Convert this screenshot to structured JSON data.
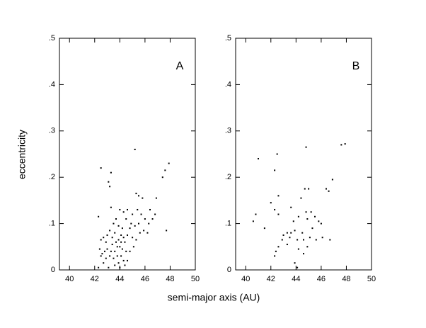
{
  "chart_data": [
    {
      "type": "scatter",
      "label": "A",
      "ylabel": "eccentricity",
      "xlabel": "semi-major axis (AU)",
      "xlim": [
        39.2,
        50
      ],
      "ylim": [
        0,
        0.5
      ],
      "xticks": [
        40,
        42,
        44,
        46,
        48,
        50
      ],
      "yticks": [
        0,
        {
          "value": 0.1,
          "label": ".1"
        },
        {
          "value": 0.2,
          "label": ".2"
        },
        {
          "value": 0.3,
          "label": ".3"
        },
        {
          "value": 0.4,
          "label": ".4"
        },
        {
          "value": 0.5,
          "label": ".5"
        }
      ],
      "color": "#000000",
      "x": [
        42.5,
        43.3,
        43.1,
        43.2,
        45.2,
        47.9,
        47.6,
        47.4,
        45.3,
        45.5,
        45.8,
        46.9,
        42.3,
        43.3,
        44.0,
        44.3,
        44.6,
        45.0,
        45.4,
        45.7,
        46.0,
        46.4,
        46.6,
        46.8,
        47.7,
        46.2,
        45.6,
        45.9,
        45.2,
        44.9,
        44.5,
        44.8,
        43.7,
        43.5,
        43.9,
        44.2,
        44.6,
        45.0,
        45.3,
        44.4,
        44.1,
        43.9,
        43.6,
        43.2,
        43.0,
        42.7,
        42.5,
        42.9,
        43.4,
        43.8,
        44.0,
        44.2,
        44.5,
        44.8,
        43.6,
        43.3,
        43.0,
        42.8,
        42.6,
        42.5,
        42.9,
        43.2,
        43.5,
        43.8,
        44.1,
        44.3,
        44.6,
        43.9,
        43.6,
        42.7,
        43.1,
        44.4,
        44.0,
        42.4,
        44.3,
        45.1,
        43.7,
        44.1,
        43.4,
        42.3,
        45.5,
        46.3
      ],
      "y": [
        0.22,
        0.21,
        0.19,
        0.18,
        0.26,
        0.23,
        0.215,
        0.2,
        0.165,
        0.16,
        0.155,
        0.155,
        0.115,
        0.135,
        0.13,
        0.125,
        0.13,
        0.12,
        0.13,
        0.12,
        0.11,
        0.13,
        0.11,
        0.12,
        0.085,
        0.08,
        0.08,
        0.085,
        0.095,
        0.1,
        0.11,
        0.09,
        0.11,
        0.1,
        0.095,
        0.09,
        0.075,
        0.07,
        0.065,
        0.06,
        0.06,
        0.065,
        0.08,
        0.085,
        0.075,
        0.07,
        0.065,
        0.06,
        0.055,
        0.05,
        0.05,
        0.045,
        0.04,
        0.04,
        0.04,
        0.04,
        0.045,
        0.04,
        0.035,
        0.03,
        0.025,
        0.03,
        0.025,
        0.03,
        0.03,
        0.02,
        0.02,
        0.015,
        0.01,
        0.015,
        0.005,
        0.01,
        0.005,
        0.045,
        0.07,
        0.05,
        0.06,
        0.075,
        0.07,
        0.005,
        0.1,
        0.1
      ]
    },
    {
      "type": "scatter",
      "label": "B",
      "xlim": [
        39.2,
        50
      ],
      "ylim": [
        0,
        0.5
      ],
      "xticks": [
        40,
        42,
        44,
        46,
        48,
        50
      ],
      "yticks": [
        0,
        {
          "value": 0.1,
          "label": ".1"
        },
        {
          "value": 0.2,
          "label": ".2"
        },
        {
          "value": 0.3,
          "label": ".3"
        },
        {
          "value": 0.4,
          "label": ".4"
        },
        {
          "value": 0.5,
          "label": ".5"
        }
      ],
      "color": "#000000",
      "x": [
        41.0,
        42.5,
        42.3,
        44.8,
        47.6,
        47.9,
        46.9,
        46.4,
        46.6,
        44.7,
        45.0,
        42.6,
        44.4,
        42.0,
        42.3,
        43.6,
        40.8,
        42.6,
        44.2,
        44.8,
        45.2,
        45.5,
        45.8,
        40.6,
        44.9,
        45.3,
        46.0,
        43.8,
        41.5,
        43.3,
        43.6,
        43.9,
        44.5,
        43.0,
        43.5,
        42.9,
        44.1,
        44.6,
        45.1,
        45.6,
        46.1,
        46.7,
        43.3,
        42.6,
        42.4,
        44.9,
        44.2,
        42.3,
        44.6,
        43.9,
        44.1
      ],
      "y": [
        0.24,
        0.25,
        0.215,
        0.265,
        0.27,
        0.272,
        0.195,
        0.175,
        0.17,
        0.175,
        0.175,
        0.16,
        0.155,
        0.145,
        0.13,
        0.135,
        0.12,
        0.12,
        0.115,
        0.125,
        0.125,
        0.115,
        0.105,
        0.105,
        0.11,
        0.09,
        0.1,
        0.105,
        0.09,
        0.08,
        0.08,
        0.085,
        0.08,
        0.075,
        0.07,
        0.065,
        0.065,
        0.065,
        0.07,
        0.065,
        0.07,
        0.065,
        0.055,
        0.05,
        0.04,
        0.05,
        0.045,
        0.03,
        0.035,
        0.015,
        0.005
      ]
    }
  ]
}
